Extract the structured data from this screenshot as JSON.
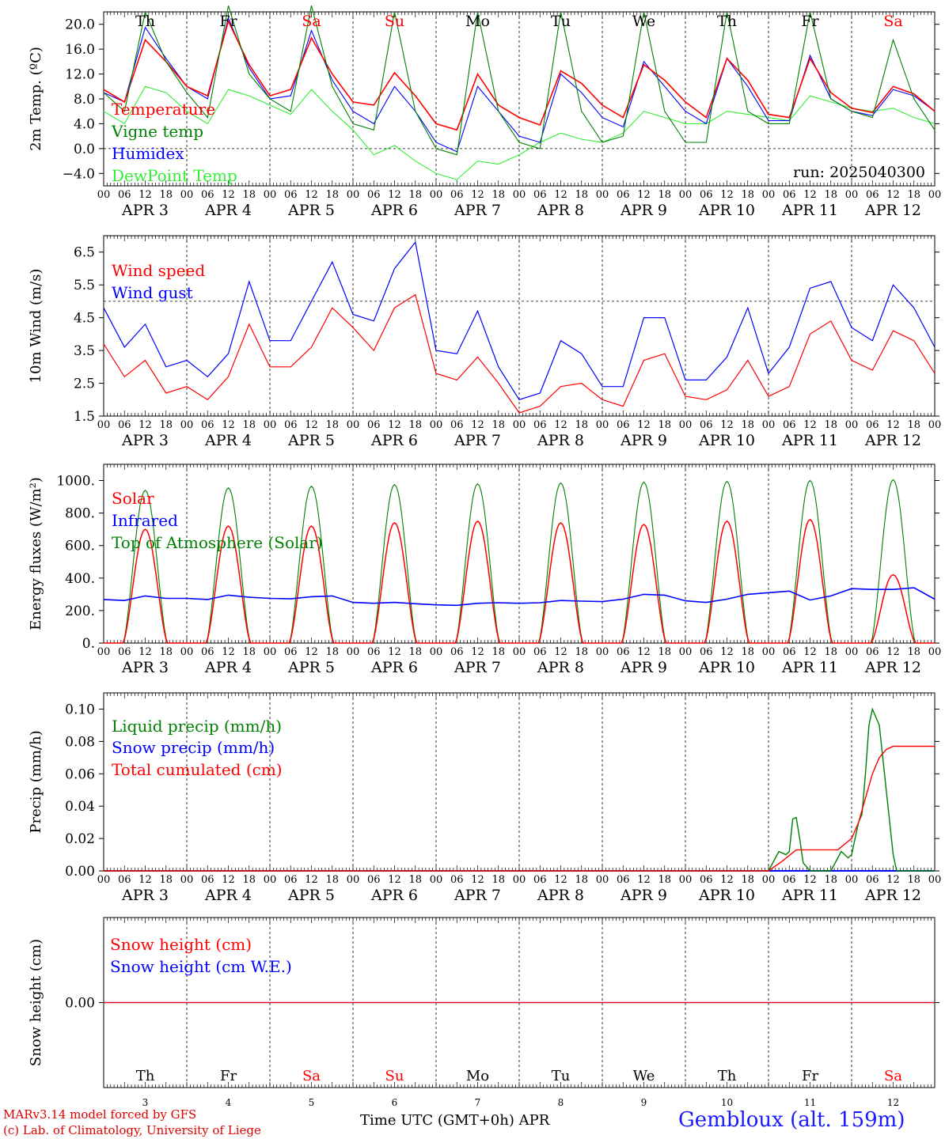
{
  "meta": {
    "credit_line1": "MARv3.14 model forced by GFS",
    "credit_line2": "(c) Lab. of Climatology, University of Liege",
    "xaxis_title": "Time UTC (GMT+0h) APR",
    "station": "Gembloux (alt. 159m)",
    "run_label": "run: 2025040300"
  },
  "colors": {
    "red": "#ff0000",
    "green": "#008000",
    "blue": "#0000ff",
    "light_green": "#33ee33",
    "weekend": "#ff0000",
    "weekday": "#000000"
  },
  "time_axis": {
    "hour_ticks": [
      "00",
      "06",
      "12",
      "18"
    ],
    "end_tick": "00",
    "dates": [
      "APR  3",
      "APR  4",
      "APR  5",
      "APR  6",
      "APR  7",
      "APR  8",
      "APR  9",
      "APR 10",
      "APR 11",
      "APR 12"
    ],
    "weekdays": [
      "Th",
      "Fr",
      "Sa",
      "Su",
      "Mo",
      "Tu",
      "We",
      "Th",
      "Fr",
      "Sa"
    ],
    "weekend_flags": [
      false,
      false,
      true,
      true,
      false,
      false,
      false,
      false,
      false,
      true
    ],
    "day_numbers": [
      "3",
      "4",
      "5",
      "6",
      "7",
      "8",
      "9",
      "10",
      "11",
      "12"
    ],
    "hours_total": 240
  },
  "chart_data": [
    {
      "type": "line",
      "panel": "temperature",
      "ylabel": "2m Temp. (ºC)",
      "ylim": [
        -6,
        22
      ],
      "yticks": [
        -4,
        0,
        4,
        8,
        12,
        16,
        20
      ],
      "ytick_labels": [
        "−4.0",
        "0.0",
        "4.0",
        "8.0",
        "12.0",
        "16.0",
        "20.0"
      ],
      "zero_line": 0,
      "run_label_key": "meta.run_label",
      "x_hours": [
        0,
        6,
        12,
        18,
        24,
        30,
        36,
        42,
        48,
        54,
        60,
        66,
        72,
        78,
        84,
        90,
        96,
        102,
        108,
        114,
        120,
        126,
        132,
        138,
        144,
        150,
        156,
        162,
        168,
        174,
        180,
        186,
        192,
        198,
        204,
        210,
        216,
        222,
        228,
        234,
        240
      ],
      "series": [
        {
          "name": "Temperature",
          "color": "red",
          "y": [
            9.5,
            7.5,
            17.5,
            14,
            10,
            8.5,
            20.5,
            13.5,
            8.5,
            9.5,
            17.8,
            12,
            7.5,
            7,
            12.2,
            8.5,
            4,
            3,
            12,
            7,
            5,
            3.8,
            12.5,
            10.5,
            7,
            5,
            13.5,
            11,
            7.5,
            5,
            14.5,
            11,
            5.5,
            5,
            14.5,
            9,
            6.5,
            5.8,
            10,
            8.8,
            6
          ]
        },
        {
          "name": "Vigne temp",
          "color": "green",
          "y": [
            9,
            6,
            22,
            14,
            9,
            5,
            23,
            12,
            8,
            6,
            23,
            10,
            4,
            3,
            22,
            6,
            0,
            -1,
            22,
            6,
            1,
            0,
            22,
            6,
            1,
            2,
            22,
            6,
            1,
            1,
            22,
            6,
            4,
            4,
            22,
            8,
            6,
            5,
            17.5,
            8,
            3
          ]
        },
        {
          "name": "Humidex",
          "color": "blue",
          "y": [
            9,
            7.5,
            19.5,
            14.5,
            10,
            8,
            21,
            13,
            8,
            8.5,
            19,
            11,
            6,
            4,
            10,
            6,
            1,
            -0.5,
            10,
            6,
            2,
            1,
            12,
            9,
            5,
            3.5,
            14,
            10,
            6,
            4,
            14.5,
            10,
            4.5,
            4.5,
            15,
            8,
            6,
            5.3,
            9.5,
            8.5,
            6
          ]
        },
        {
          "name": "DewPoint Temp",
          "color": "light_green",
          "y": [
            6,
            4,
            10,
            9,
            6,
            4,
            9.5,
            8.5,
            7,
            5.5,
            9.5,
            6,
            3,
            -1,
            0.5,
            -2,
            -4,
            -5,
            -2,
            -2.5,
            -1,
            1,
            2.5,
            1.5,
            1,
            2.5,
            6,
            5,
            4,
            4,
            6,
            5.5,
            5,
            4.5,
            8.5,
            7.5,
            6.5,
            6,
            6.5,
            5,
            4
          ]
        }
      ]
    },
    {
      "type": "line",
      "panel": "wind",
      "ylabel": "10m Wind (m/s)",
      "ylim": [
        1.5,
        7.0
      ],
      "yticks": [
        1.5,
        2.5,
        3.5,
        4.5,
        5.5,
        6.5
      ],
      "ytick_labels": [
        "1.5",
        "2.5",
        "3.5",
        "4.5",
        "5.5",
        "6.5"
      ],
      "ref_line": 5.0,
      "x_hours": [
        0,
        6,
        12,
        18,
        24,
        30,
        36,
        42,
        48,
        54,
        60,
        66,
        72,
        78,
        84,
        90,
        96,
        102,
        108,
        114,
        120,
        126,
        132,
        138,
        144,
        150,
        156,
        162,
        168,
        174,
        180,
        186,
        192,
        198,
        204,
        210,
        216,
        222,
        228,
        234,
        240
      ],
      "series": [
        {
          "name": "Wind speed",
          "color": "red",
          "y": [
            3.7,
            2.7,
            3.2,
            2.2,
            2.4,
            2.0,
            2.7,
            4.3,
            3.0,
            3.0,
            3.6,
            4.8,
            4.2,
            3.5,
            4.8,
            5.2,
            2.8,
            2.6,
            3.3,
            2.5,
            1.6,
            1.8,
            2.4,
            2.5,
            2.0,
            1.8,
            3.2,
            3.4,
            2.1,
            2.0,
            2.3,
            3.2,
            2.1,
            2.4,
            4.0,
            4.4,
            3.2,
            2.9,
            4.1,
            3.8,
            2.8
          ]
        },
        {
          "name": "Wind gust",
          "color": "blue",
          "y": [
            4.8,
            3.6,
            4.3,
            3.0,
            3.2,
            2.7,
            3.4,
            5.6,
            3.8,
            3.8,
            5.0,
            6.2,
            4.6,
            4.4,
            6.0,
            6.8,
            3.5,
            3.4,
            4.7,
            3.0,
            2.0,
            2.2,
            3.8,
            3.4,
            2.4,
            2.4,
            4.5,
            4.5,
            2.6,
            2.6,
            3.3,
            4.8,
            2.8,
            3.6,
            5.4,
            5.6,
            4.2,
            3.8,
            5.5,
            4.8,
            3.6
          ]
        }
      ]
    },
    {
      "type": "line",
      "panel": "energy",
      "ylabel": "Energy fluxes (W/m²)",
      "ylim": [
        0,
        1100
      ],
      "yticks": [
        0,
        200,
        400,
        600,
        800,
        1000
      ],
      "ytick_labels": [
        "0.",
        "200.",
        "400.",
        "600.",
        "800.",
        "1000."
      ],
      "daylight_hours": [
        5.5,
        18.5
      ],
      "series": [
        {
          "name": "Solar",
          "color": "red",
          "daily_peak": [
            700,
            720,
            720,
            740,
            750,
            740,
            730,
            750,
            760,
            420
          ]
        },
        {
          "name": "Infrared",
          "color": "blue",
          "x_hours": [
            0,
            6,
            12,
            18,
            24,
            30,
            36,
            42,
            48,
            54,
            60,
            66,
            72,
            78,
            84,
            90,
            96,
            102,
            108,
            114,
            120,
            126,
            132,
            138,
            144,
            150,
            156,
            162,
            168,
            174,
            180,
            186,
            192,
            198,
            204,
            210,
            216,
            222,
            228,
            234,
            240
          ],
          "y": [
            268,
            262,
            290,
            275,
            275,
            268,
            295,
            282,
            275,
            272,
            285,
            290,
            250,
            245,
            250,
            242,
            235,
            232,
            245,
            248,
            245,
            248,
            262,
            258,
            255,
            270,
            300,
            295,
            260,
            250,
            270,
            300,
            310,
            320,
            265,
            290,
            335,
            330,
            330,
            340,
            270
          ]
        },
        {
          "name": "Top of Atmosphere (Solar)",
          "color": "green",
          "daily_peak": [
            940,
            955,
            965,
            975,
            980,
            985,
            990,
            995,
            1000,
            1005
          ]
        }
      ]
    },
    {
      "type": "line",
      "panel": "precip",
      "ylabel": "Precip (mm/h)",
      "ylim": [
        0,
        0.11
      ],
      "yticks": [
        0.0,
        0.02,
        0.04,
        0.06,
        0.08,
        0.1
      ],
      "ytick_labels": [
        "0.00",
        "0.02",
        "0.04",
        "0.06",
        "0.08",
        "0.10"
      ],
      "series": [
        {
          "name": "Liquid precip (mm/h)",
          "color": "green",
          "x_hours": [
            0,
            192,
            195,
            197,
            198,
            199,
            200,
            201,
            202,
            204,
            210,
            213,
            215,
            216,
            217,
            218,
            219,
            220,
            221,
            222,
            224,
            228,
            229,
            230,
            231,
            232,
            234,
            240
          ],
          "y": [
            0,
            0,
            0.012,
            0.01,
            0.012,
            0.032,
            0.033,
            0.02,
            0.005,
            0,
            0,
            0.012,
            0.008,
            0.01,
            0.02,
            0.03,
            0.035,
            0.06,
            0.09,
            0.1,
            0.09,
            0.01,
            0,
            0,
            0,
            0,
            0,
            0
          ]
        },
        {
          "name": "Snow precip (mm/h)",
          "color": "blue",
          "x_hours": [
            0,
            240
          ],
          "y": [
            0,
            0
          ]
        },
        {
          "name": "Total cumulated (cm)",
          "color": "red",
          "x_hours": [
            0,
            192,
            196,
            200,
            212,
            216,
            218,
            220,
            222,
            224,
            226,
            228,
            232,
            240
          ],
          "y": [
            0,
            0,
            0.006,
            0.013,
            0.013,
            0.02,
            0.03,
            0.045,
            0.06,
            0.07,
            0.075,
            0.077,
            0.077,
            0.077
          ]
        }
      ]
    },
    {
      "type": "line",
      "panel": "snow",
      "ylabel": "Snow height (cm)",
      "ylim": [
        -1,
        1
      ],
      "yticks": [
        0
      ],
      "ytick_labels": [
        "0.00"
      ],
      "series": [
        {
          "name": "Snow height (cm)",
          "color": "red",
          "x_hours": [
            0,
            240
          ],
          "y": [
            0,
            0
          ]
        },
        {
          "name": "Snow height (cm W.E.)",
          "color": "blue",
          "x_hours": [
            0,
            240
          ],
          "y": [
            0,
            0
          ]
        }
      ]
    }
  ]
}
